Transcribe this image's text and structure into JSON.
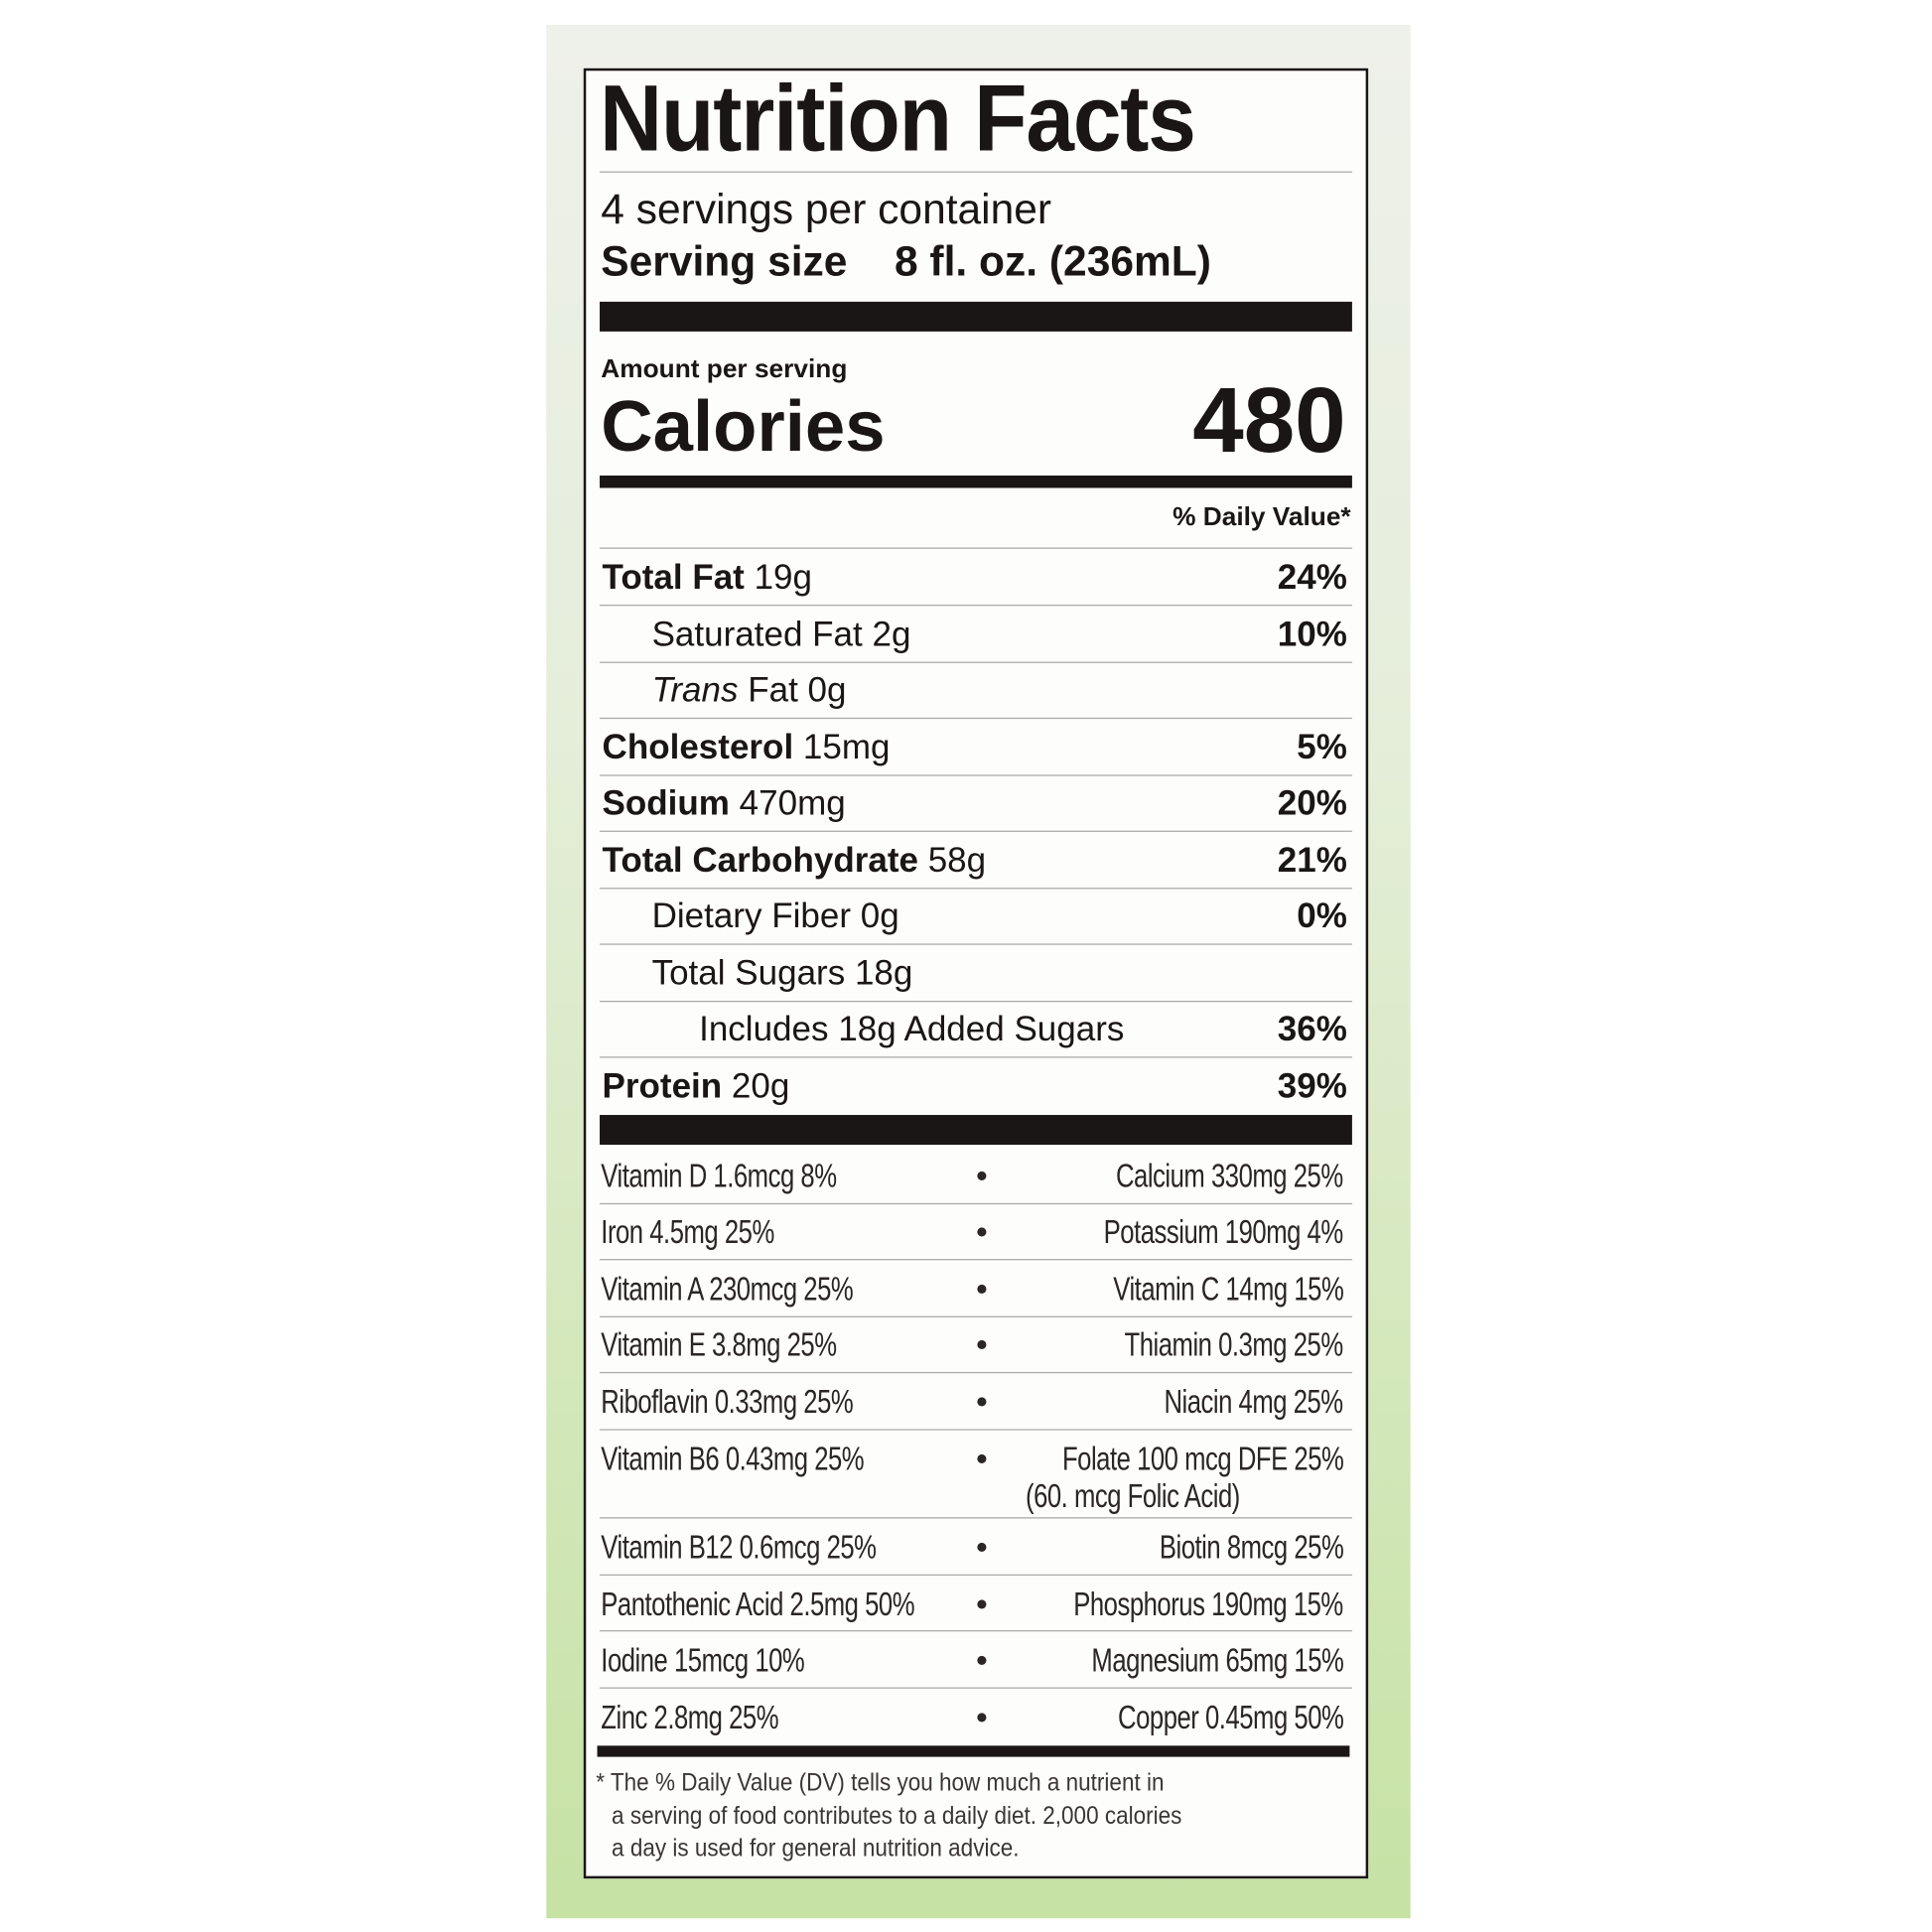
{
  "title": "Nutrition Facts",
  "servings_per_container": "4 servings per container",
  "serving_size_label": "Serving size",
  "serving_size_value": "8 fl. oz. (236mL)",
  "amount_per_serving": "Amount per serving",
  "calories_label": "Calories",
  "calories_value": "480",
  "daily_value_header": "% Daily Value*",
  "nutrients": [
    {
      "name": "Total Fat",
      "amount": "19g",
      "dv": "24%",
      "bold": true,
      "indent": 0
    },
    {
      "name": "Saturated Fat",
      "amount": "2g",
      "dv": "10%",
      "bold": false,
      "indent": 1
    },
    {
      "name": "Trans",
      "name_suffix": "Fat",
      "amount": "0g",
      "dv": "",
      "bold": false,
      "indent": 1
    },
    {
      "name": "Cholesterol",
      "amount": "15mg",
      "dv": "5%",
      "bold": true,
      "indent": 0
    },
    {
      "name": "Sodium",
      "amount": "470mg",
      "dv": "20%",
      "bold": true,
      "indent": 0
    },
    {
      "name": "Total Carbohydrate",
      "amount": "58g",
      "dv": "21%",
      "bold": true,
      "indent": 0
    },
    {
      "name": "Dietary Fiber",
      "amount": "0g",
      "dv": "0%",
      "bold": false,
      "indent": 1
    },
    {
      "name": "Total Sugars",
      "amount": "18g",
      "dv": "",
      "bold": false,
      "indent": 1
    },
    {
      "name": "Includes 18g Added Sugars",
      "amount": "",
      "dv": "36%",
      "bold": false,
      "indent": 2
    },
    {
      "name": "Protein",
      "amount": "20g",
      "dv": "39%",
      "bold": true,
      "indent": 0
    }
  ],
  "vitamins": [
    {
      "left": "Vitamin D 1.6mcg 8%",
      "right": "Calcium 330mg 25%"
    },
    {
      "left": "Iron 4.5mg 25%",
      "right": "Potassium 190mg 4%"
    },
    {
      "left": "Vitamin A 230mcg 25%",
      "right": "Vitamin C 14mg 15%"
    },
    {
      "left": "Vitamin E 3.8mg 25%",
      "right": "Thiamin 0.3mg 25%"
    },
    {
      "left": "Riboflavin 0.33mg 25%",
      "right": "Niacin 4mg 25%"
    },
    {
      "left": "Vitamin B6 0.43mg 25%",
      "right": "Folate 100 mcg DFE 25%",
      "right_line2": "(60. mcg Folic Acid)"
    },
    {
      "left": "Vitamin B12 0.6mcg 25%",
      "right": "Biotin 8mcg 25%"
    },
    {
      "left": "Pantothenic Acid 2.5mg 50%",
      "right": "Phosphorus 190mg 15%"
    },
    {
      "left": "Iodine 15mcg 10%",
      "right": "Magnesium 65mg 15%"
    },
    {
      "left": "Zinc 2.8mg 25%",
      "right": "Copper 0.45mg 50%"
    }
  ],
  "separator": "•",
  "footnote": {
    "line1": "* The % Daily Value (DV) tells you how much a nutrient in",
    "line2": "a serving of food contributes to a daily diet. 2,000 calories",
    "line3": "a day is used for general nutrition advice."
  },
  "colors": {
    "ink": "#1a1616",
    "panel_top": "#eef0ea",
    "panel_bottom": "#c6e2a4"
  }
}
